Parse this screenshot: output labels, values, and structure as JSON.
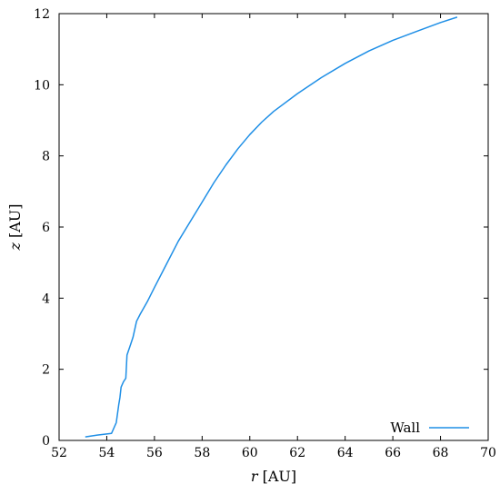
{
  "chart_data": {
    "type": "line",
    "title": "",
    "xlabel_var": "r",
    "xlabel_unit": " [AU]",
    "ylabel_var": "z",
    "ylabel_unit": " [AU]",
    "xlim": [
      52,
      70
    ],
    "ylim": [
      0,
      12
    ],
    "xticks": [
      52,
      54,
      56,
      58,
      60,
      62,
      64,
      66,
      68,
      70
    ],
    "yticks": [
      0,
      2,
      4,
      6,
      8,
      10,
      12
    ],
    "grid": false,
    "legend_position": "bottom-right",
    "series": [
      {
        "name": "Wall",
        "color": "#1f8fe6",
        "x": [
          53.1,
          53.6,
          54.2,
          54.4,
          54.5,
          54.55,
          54.6,
          54.7,
          54.8,
          54.85,
          54.9,
          55.0,
          55.1,
          55.2,
          55.25,
          55.4,
          55.7,
          56.0,
          56.5,
          57.0,
          57.5,
          58.0,
          58.5,
          59.0,
          59.5,
          60.0,
          60.5,
          61.0,
          62.0,
          63.0,
          64.0,
          65.0,
          66.0,
          67.0,
          68.0,
          68.7
        ],
        "y": [
          0.1,
          0.15,
          0.2,
          0.5,
          1.0,
          1.2,
          1.5,
          1.65,
          1.75,
          2.4,
          2.5,
          2.7,
          2.9,
          3.2,
          3.35,
          3.55,
          3.9,
          4.3,
          4.95,
          5.6,
          6.15,
          6.7,
          7.25,
          7.75,
          8.2,
          8.6,
          8.95,
          9.25,
          9.75,
          10.2,
          10.6,
          10.95,
          11.25,
          11.5,
          11.75,
          11.9
        ]
      }
    ]
  }
}
